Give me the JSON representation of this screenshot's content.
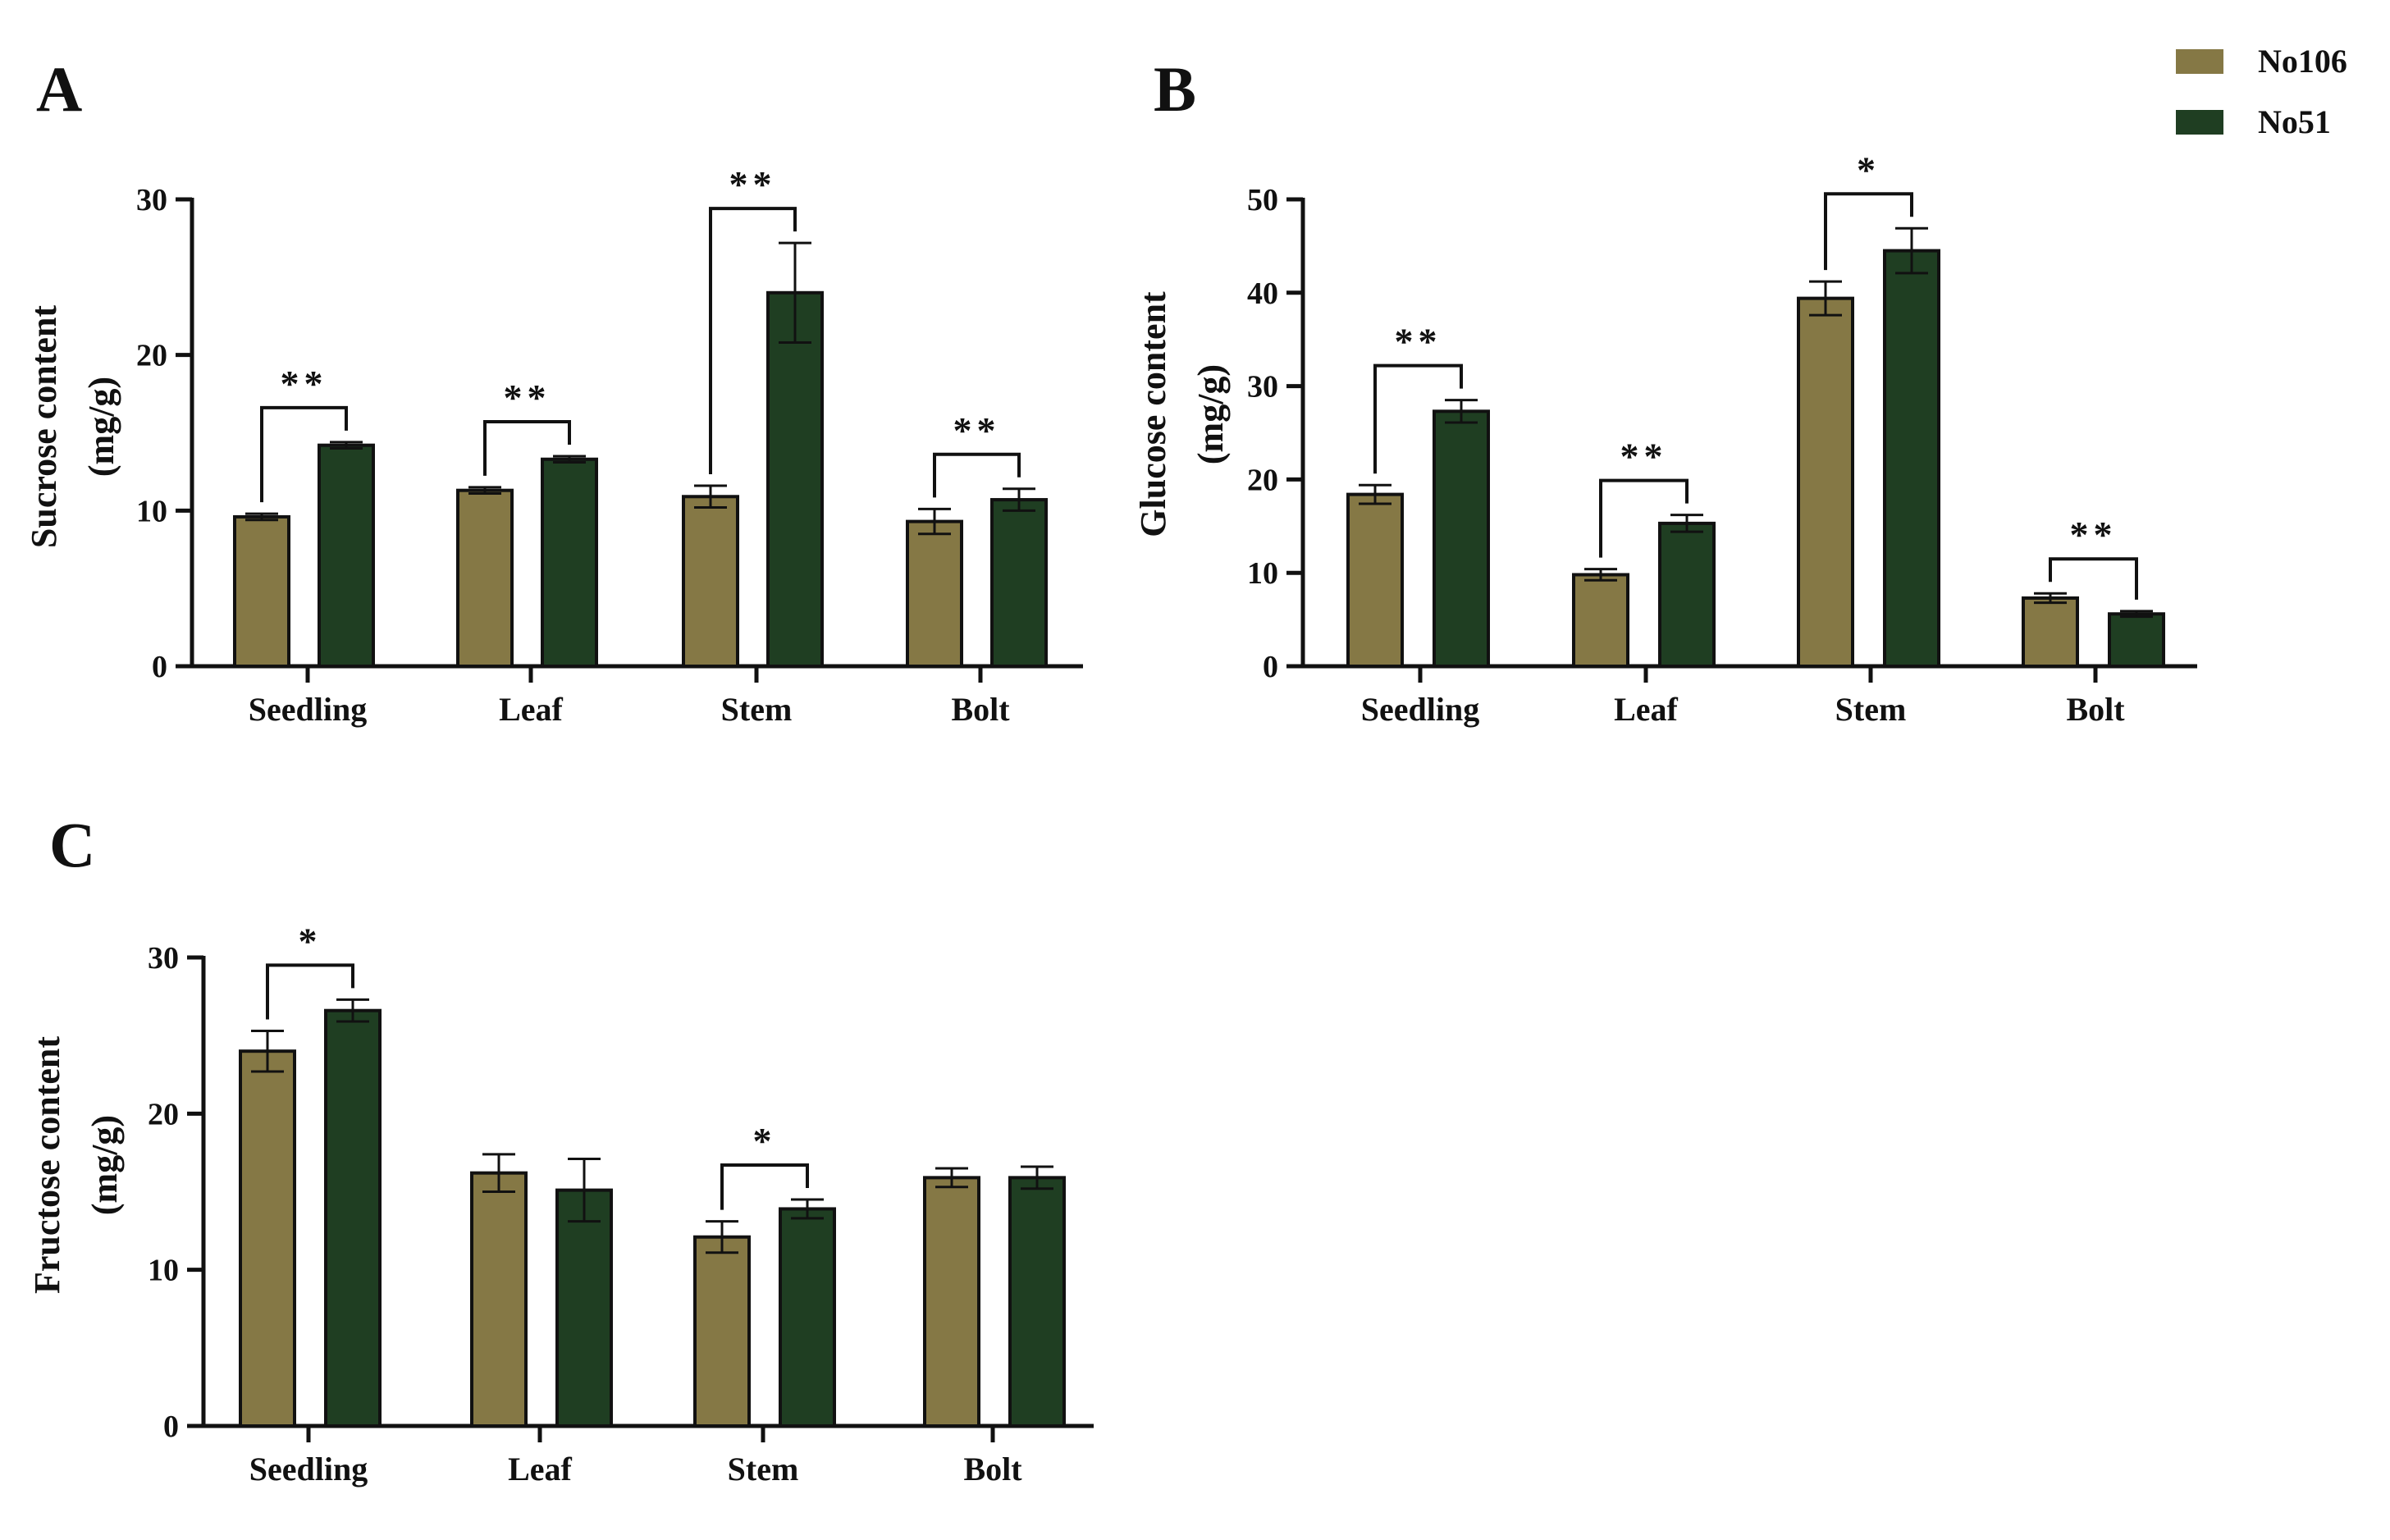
{
  "legend": {
    "entries": [
      {
        "name": "No106",
        "color": "#857845"
      },
      {
        "name": "No51",
        "color": "#1f3e22"
      }
    ]
  },
  "chart_data": [
    {
      "id": "A",
      "panel_label": "A",
      "type": "bar",
      "categories": [
        "Seedling",
        "Leaf",
        "Stem",
        "Bolt"
      ],
      "series": [
        {
          "name": "No106",
          "values": [
            9.6,
            11.3,
            10.9,
            9.3
          ],
          "errors": [
            0.2,
            0.2,
            0.7,
            0.8
          ]
        },
        {
          "name": "No51",
          "values": [
            14.2,
            13.3,
            24.0,
            10.7
          ],
          "errors": [
            0.2,
            0.2,
            3.2,
            0.7
          ]
        }
      ],
      "significance": [
        "**",
        "**",
        "**",
        "**"
      ],
      "ylabel": "Sucrose content",
      "ylabel_unit": "(mg/g)",
      "ylim": [
        0,
        30
      ],
      "yticks": [
        0,
        10,
        20,
        30
      ]
    },
    {
      "id": "B",
      "panel_label": "B",
      "type": "bar",
      "categories": [
        "Seedling",
        "Leaf",
        "Stem",
        "Bolt"
      ],
      "series": [
        {
          "name": "No106",
          "values": [
            18.4,
            9.8,
            39.4,
            7.3
          ],
          "errors": [
            1.0,
            0.6,
            1.8,
            0.5
          ]
        },
        {
          "name": "No51",
          "values": [
            27.3,
            15.3,
            44.5,
            5.6
          ],
          "errors": [
            1.2,
            0.9,
            2.4,
            0.3
          ]
        }
      ],
      "significance": [
        "**",
        "**",
        "*",
        "**"
      ],
      "ylabel": "Glucose content",
      "ylabel_unit": "(mg/g)",
      "ylim": [
        0,
        50
      ],
      "yticks": [
        0,
        10,
        20,
        30,
        40,
        50
      ]
    },
    {
      "id": "C",
      "panel_label": "C",
      "type": "bar",
      "categories": [
        "Seedling",
        "Leaf",
        "Stem",
        "Bolt"
      ],
      "series": [
        {
          "name": "No106",
          "values": [
            24.0,
            16.2,
            12.1,
            15.9
          ],
          "errors": [
            1.3,
            1.2,
            1.0,
            0.6
          ]
        },
        {
          "name": "No51",
          "values": [
            26.6,
            15.1,
            13.9,
            15.9
          ],
          "errors": [
            0.7,
            2.0,
            0.6,
            0.7
          ]
        }
      ],
      "significance": [
        "*",
        "",
        "*",
        ""
      ],
      "ylabel": "Fructose content",
      "ylabel_unit": "(mg/g)",
      "ylim": [
        0,
        30
      ],
      "yticks": [
        0,
        10,
        20,
        30
      ]
    }
  ]
}
